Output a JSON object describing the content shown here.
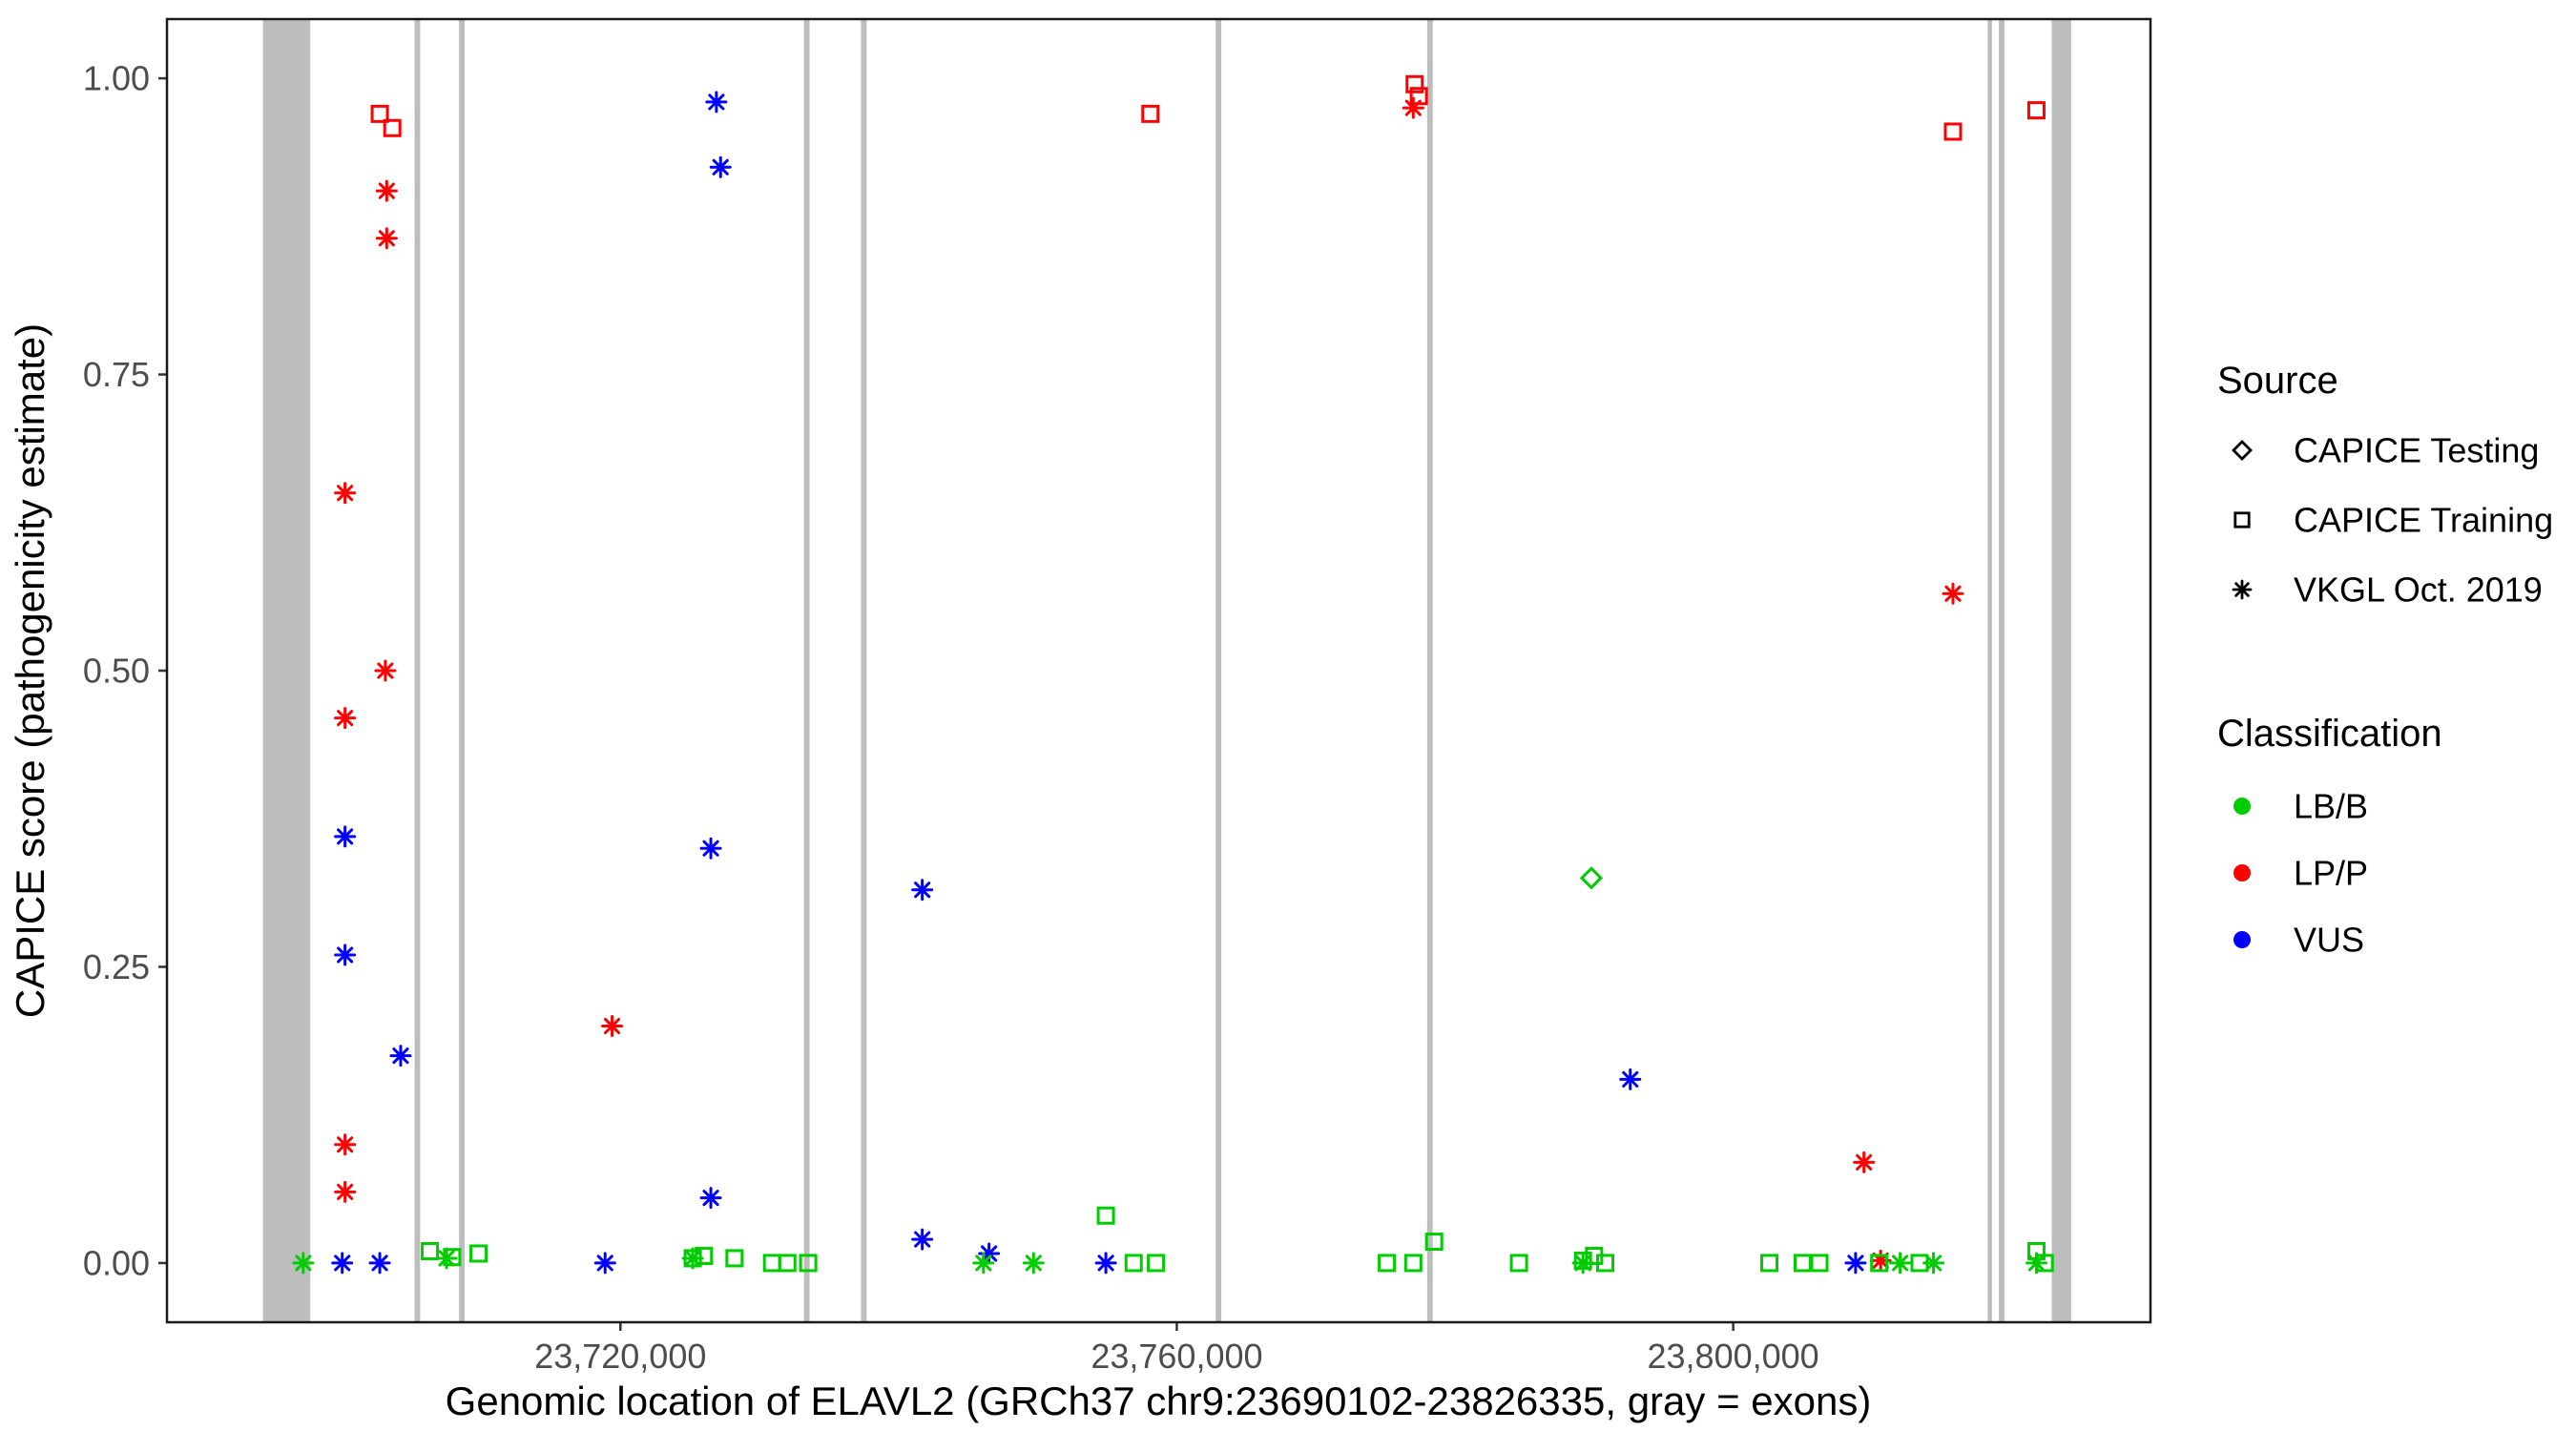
{
  "chart_data": {
    "type": "scatter",
    "title": "",
    "xlabel": "Genomic location of ELAVL2 (GRCh37 chr9:23690102-23826335, gray = exons)",
    "ylabel": "CAPICE score (pathogenicity estimate)",
    "xlim": [
      23687400,
      23830000
    ],
    "ylim": [
      -0.05,
      1.05
    ],
    "grid": "off",
    "exon_color": "#BDBDBD",
    "panel_border_color": "#1A1A1A",
    "tick_color": "#333333",
    "tick_label_color": "#4D4D4D",
    "x_ticks": [
      {
        "value": 23720000,
        "label": "23,720,000"
      },
      {
        "value": 23760000,
        "label": "23,760,000"
      },
      {
        "value": 23800000,
        "label": "23,800,000"
      }
    ],
    "y_ticks": [
      {
        "value": 0.0,
        "label": "0.00"
      },
      {
        "value": 0.25,
        "label": "0.25"
      },
      {
        "value": 0.5,
        "label": "0.50"
      },
      {
        "value": 0.75,
        "label": "0.75"
      },
      {
        "value": 1.0,
        "label": "1.00"
      }
    ],
    "classification_colors": {
      "LB/B": "#00CC00",
      "LP/P": "#FF0000",
      "VUS": "#0000FF"
    },
    "source_shapes": {
      "testing": "diamond",
      "training": "square",
      "vkgl": "asterisk"
    },
    "exons": [
      [
        23694300,
        23697700
      ],
      [
        23705200,
        23705600
      ],
      [
        23708400,
        23708800
      ],
      [
        23733200,
        23733600
      ],
      [
        23737300,
        23737700
      ],
      [
        23762800,
        23763200
      ],
      [
        23778000,
        23778400
      ],
      [
        23818300,
        23818600
      ],
      [
        23819100,
        23819500
      ],
      [
        23822900,
        23824300
      ]
    ],
    "points": [
      {
        "x": 23702700,
        "y": 0.97,
        "src": "training",
        "cls": "LP/P"
      },
      {
        "x": 23703600,
        "y": 0.958,
        "src": "training",
        "cls": "LP/P"
      },
      {
        "x": 23758100,
        "y": 0.97,
        "src": "training",
        "cls": "LP/P"
      },
      {
        "x": 23777100,
        "y": 0.995,
        "src": "training",
        "cls": "LP/P"
      },
      {
        "x": 23777400,
        "y": 0.985,
        "src": "training",
        "cls": "LP/P"
      },
      {
        "x": 23815800,
        "y": 0.955,
        "src": "training",
        "cls": "LP/P"
      },
      {
        "x": 23821800,
        "y": 0.973,
        "src": "training",
        "cls": "LP/P"
      },
      {
        "x": 23703200,
        "y": 0.905,
        "src": "vkgl",
        "cls": "LP/P"
      },
      {
        "x": 23703200,
        "y": 0.865,
        "src": "vkgl",
        "cls": "LP/P"
      },
      {
        "x": 23700200,
        "y": 0.65,
        "src": "vkgl",
        "cls": "LP/P"
      },
      {
        "x": 23703100,
        "y": 0.5,
        "src": "vkgl",
        "cls": "LP/P"
      },
      {
        "x": 23700200,
        "y": 0.46,
        "src": "vkgl",
        "cls": "LP/P"
      },
      {
        "x": 23700200,
        "y": 0.1,
        "src": "vkgl",
        "cls": "LP/P"
      },
      {
        "x": 23700200,
        "y": 0.06,
        "src": "vkgl",
        "cls": "LP/P"
      },
      {
        "x": 23719400,
        "y": 0.2,
        "src": "vkgl",
        "cls": "LP/P"
      },
      {
        "x": 23777000,
        "y": 0.975,
        "src": "vkgl",
        "cls": "LP/P"
      },
      {
        "x": 23815800,
        "y": 0.565,
        "src": "vkgl",
        "cls": "LP/P"
      },
      {
        "x": 23809400,
        "y": 0.085,
        "src": "vkgl",
        "cls": "LP/P"
      },
      {
        "x": 23810600,
        "y": 0.002,
        "src": "vkgl",
        "cls": "LP/P"
      },
      {
        "x": 23726900,
        "y": 0.98,
        "src": "vkgl",
        "cls": "VUS"
      },
      {
        "x": 23727200,
        "y": 0.925,
        "src": "vkgl",
        "cls": "VUS"
      },
      {
        "x": 23700200,
        "y": 0.36,
        "src": "vkgl",
        "cls": "VUS"
      },
      {
        "x": 23700200,
        "y": 0.26,
        "src": "vkgl",
        "cls": "VUS"
      },
      {
        "x": 23704200,
        "y": 0.175,
        "src": "vkgl",
        "cls": "VUS"
      },
      {
        "x": 23726500,
        "y": 0.35,
        "src": "vkgl",
        "cls": "VUS"
      },
      {
        "x": 23741700,
        "y": 0.315,
        "src": "vkgl",
        "cls": "VUS"
      },
      {
        "x": 23726500,
        "y": 0.055,
        "src": "vkgl",
        "cls": "VUS"
      },
      {
        "x": 23741700,
        "y": 0.02,
        "src": "vkgl",
        "cls": "VUS"
      },
      {
        "x": 23792600,
        "y": 0.155,
        "src": "vkgl",
        "cls": "VUS"
      },
      {
        "x": 23700000,
        "y": 0.0,
        "src": "vkgl",
        "cls": "VUS"
      },
      {
        "x": 23702700,
        "y": 0.0,
        "src": "vkgl",
        "cls": "VUS"
      },
      {
        "x": 23718900,
        "y": 0.0,
        "src": "vkgl",
        "cls": "VUS"
      },
      {
        "x": 23746500,
        "y": 0.008,
        "src": "vkgl",
        "cls": "VUS"
      },
      {
        "x": 23754900,
        "y": 0.0,
        "src": "vkgl",
        "cls": "VUS"
      },
      {
        "x": 23808800,
        "y": 0.0,
        "src": "vkgl",
        "cls": "VUS"
      },
      {
        "x": 23789800,
        "y": 0.325,
        "src": "testing",
        "cls": "LB/B"
      },
      {
        "x": 23706300,
        "y": 0.01,
        "src": "training",
        "cls": "LB/B"
      },
      {
        "x": 23707900,
        "y": 0.005,
        "src": "training",
        "cls": "LB/B"
      },
      {
        "x": 23709800,
        "y": 0.008,
        "src": "training",
        "cls": "LB/B"
      },
      {
        "x": 23725200,
        "y": 0.004,
        "src": "training",
        "cls": "LB/B"
      },
      {
        "x": 23726000,
        "y": 0.006,
        "src": "training",
        "cls": "LB/B"
      },
      {
        "x": 23728200,
        "y": 0.004,
        "src": "training",
        "cls": "LB/B"
      },
      {
        "x": 23730900,
        "y": 0.0,
        "src": "training",
        "cls": "LB/B"
      },
      {
        "x": 23732000,
        "y": 0.0,
        "src": "training",
        "cls": "LB/B"
      },
      {
        "x": 23733500,
        "y": 0.0,
        "src": "training",
        "cls": "LB/B"
      },
      {
        "x": 23754900,
        "y": 0.04,
        "src": "training",
        "cls": "LB/B"
      },
      {
        "x": 23756900,
        "y": 0.0,
        "src": "training",
        "cls": "LB/B"
      },
      {
        "x": 23758500,
        "y": 0.0,
        "src": "training",
        "cls": "LB/B"
      },
      {
        "x": 23775100,
        "y": 0.0,
        "src": "training",
        "cls": "LB/B"
      },
      {
        "x": 23777000,
        "y": 0.0,
        "src": "training",
        "cls": "LB/B"
      },
      {
        "x": 23778500,
        "y": 0.018,
        "src": "training",
        "cls": "LB/B"
      },
      {
        "x": 23784600,
        "y": 0.0,
        "src": "training",
        "cls": "LB/B"
      },
      {
        "x": 23789200,
        "y": 0.002,
        "src": "training",
        "cls": "LB/B"
      },
      {
        "x": 23790000,
        "y": 0.006,
        "src": "training",
        "cls": "LB/B"
      },
      {
        "x": 23790800,
        "y": 0.0,
        "src": "training",
        "cls": "LB/B"
      },
      {
        "x": 23802600,
        "y": 0.0,
        "src": "training",
        "cls": "LB/B"
      },
      {
        "x": 23805000,
        "y": 0.0,
        "src": "training",
        "cls": "LB/B"
      },
      {
        "x": 23806200,
        "y": 0.0,
        "src": "training",
        "cls": "LB/B"
      },
      {
        "x": 23810500,
        "y": 0.0,
        "src": "training",
        "cls": "LB/B"
      },
      {
        "x": 23813400,
        "y": 0.0,
        "src": "training",
        "cls": "LB/B"
      },
      {
        "x": 23821800,
        "y": 0.01,
        "src": "training",
        "cls": "LB/B"
      },
      {
        "x": 23822400,
        "y": 0.0,
        "src": "training",
        "cls": "LB/B"
      },
      {
        "x": 23697200,
        "y": 0.0,
        "src": "vkgl",
        "cls": "LB/B"
      },
      {
        "x": 23707500,
        "y": 0.004,
        "src": "vkgl",
        "cls": "LB/B"
      },
      {
        "x": 23725200,
        "y": 0.004,
        "src": "vkgl",
        "cls": "LB/B"
      },
      {
        "x": 23746100,
        "y": 0.0,
        "src": "vkgl",
        "cls": "LB/B"
      },
      {
        "x": 23749700,
        "y": 0.0,
        "src": "vkgl",
        "cls": "LB/B"
      },
      {
        "x": 23789200,
        "y": 0.0,
        "src": "vkgl",
        "cls": "LB/B"
      },
      {
        "x": 23812000,
        "y": 0.0,
        "src": "vkgl",
        "cls": "LB/B"
      },
      {
        "x": 23814400,
        "y": 0.0,
        "src": "vkgl",
        "cls": "LB/B"
      },
      {
        "x": 23821800,
        "y": 0.0,
        "src": "vkgl",
        "cls": "LB/B"
      }
    ]
  },
  "legend": {
    "source": {
      "title": "Source",
      "items": [
        {
          "label": "CAPICE Testing",
          "shape": "diamond"
        },
        {
          "label": "CAPICE Training",
          "shape": "square"
        },
        {
          "label": "VKGL Oct. 2019",
          "shape": "asterisk"
        }
      ]
    },
    "classification": {
      "title": "Classification",
      "items": [
        {
          "label": "LB/B",
          "color": "#00CC00"
        },
        {
          "label": "LP/P",
          "color": "#FF0000"
        },
        {
          "label": "VUS",
          "color": "#0000FF"
        }
      ]
    }
  }
}
